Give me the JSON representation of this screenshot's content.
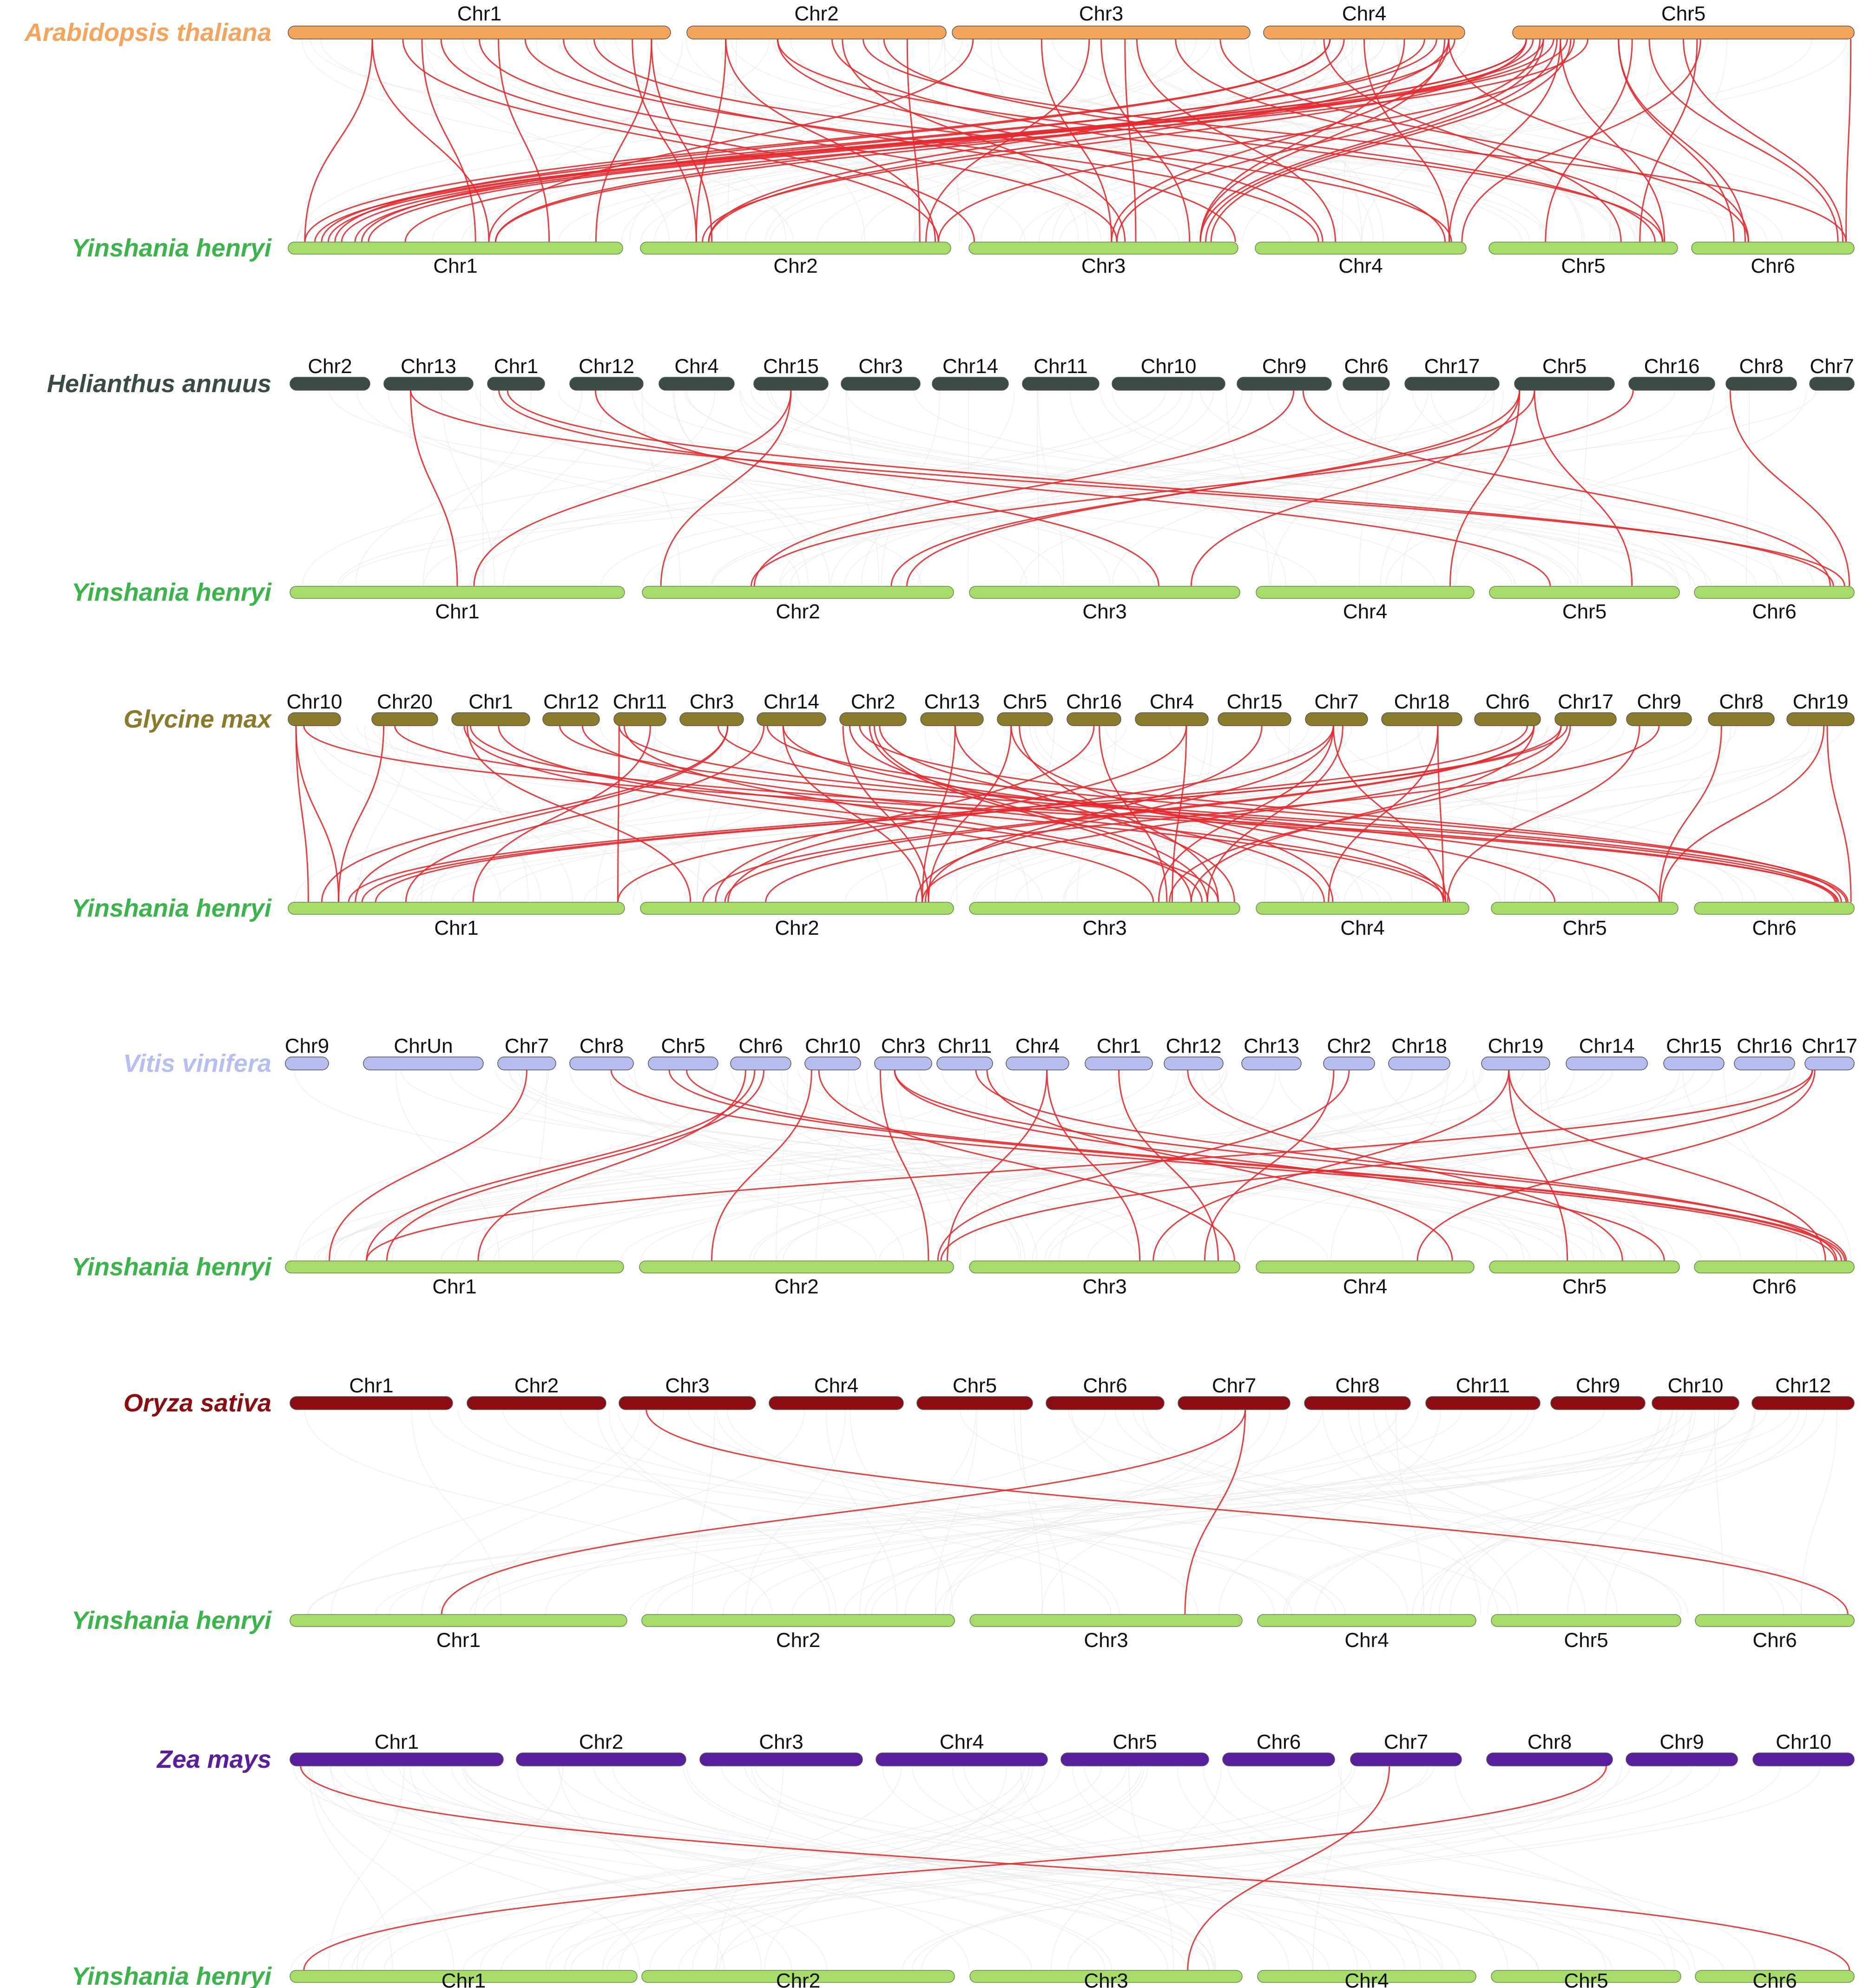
{
  "figure": {
    "link_color": "#e8282c",
    "background_link_color": "#e6e6e6",
    "blocks": [
      {
        "top": {
          "species": "Arabidopsis thaliana",
          "color": "#f5a45c",
          "chromosomes": [
            "Chr1",
            "Chr2",
            "Chr3",
            "Chr4",
            "Chr5"
          ]
        },
        "bottom": {
          "species": "Yinshania henryi",
          "color": "#a6dd6a",
          "label_color": "#3ab54a",
          "chromosomes": [
            "Chr1",
            "Chr2",
            "Chr3",
            "Chr4",
            "Chr5",
            "Chr6"
          ]
        },
        "link_count": 66
      },
      {
        "top": {
          "species": "Helianthus annuus",
          "color": "#3a4a44",
          "chromosomes": [
            "Chr2",
            "Chr13",
            "Chr1",
            "Chr12",
            "Chr4",
            "Chr15",
            "Chr3",
            "Chr14",
            "Chr11",
            "Chr10",
            "Chr9",
            "Chr6",
            "Chr17",
            "Chr5",
            "Chr16",
            "Chr8",
            "Chr7"
          ]
        },
        "bottom": {
          "species": "Yinshania henryi",
          "color": "#a6dd6a",
          "label_color": "#3ab54a",
          "chromosomes": [
            "Chr1",
            "Chr2",
            "Chr3",
            "Chr4",
            "Chr5",
            "Chr6"
          ]
        },
        "link_count": 16
      },
      {
        "top": {
          "species": "Glycine max",
          "color": "#8a7a2a",
          "chromosomes": [
            "Chr10",
            "Chr20",
            "Chr1",
            "Chr12",
            "Chr11",
            "Chr3",
            "Chr14",
            "Chr2",
            "Chr13",
            "Chr5",
            "Chr16",
            "Chr4",
            "Chr15",
            "Chr7",
            "Chr18",
            "Chr6",
            "Chr17",
            "Chr9",
            "Chr8",
            "Chr19"
          ]
        },
        "bottom": {
          "species": "Yinshania henryi",
          "color": "#a6dd6a",
          "label_color": "#3ab54a",
          "chromosomes": [
            "Chr1",
            "Chr2",
            "Chr3",
            "Chr4",
            "Chr5",
            "Chr6"
          ]
        },
        "link_count": 59
      },
      {
        "top": {
          "species": "Vitis vinifera",
          "color": "#b6bef0",
          "chromosomes": [
            "Chr9",
            "ChrUn",
            "Chr7",
            "Chr8",
            "Chr5",
            "Chr6",
            "Chr10",
            "Chr3",
            "Chr11",
            "Chr4",
            "Chr1",
            "Chr12",
            "Chr13",
            "Chr2",
            "Chr18",
            "Chr19",
            "Chr14",
            "Chr15",
            "Chr16",
            "Chr17"
          ]
        },
        "bottom": {
          "species": "Yinshania henryi",
          "color": "#a6dd6a",
          "label_color": "#3ab54a",
          "chromosomes": [
            "Chr1",
            "Chr2",
            "Chr3",
            "Chr4",
            "Chr5",
            "Chr6"
          ]
        },
        "link_count": 26
      },
      {
        "top": {
          "species": "Oryza sativa",
          "color": "#8b0d12",
          "chromosomes": [
            "Chr1",
            "Chr2",
            "Chr3",
            "Chr4",
            "Chr5",
            "Chr6",
            "Chr7",
            "Chr8",
            "Chr11",
            "Chr9",
            "Chr10",
            "Chr12"
          ]
        },
        "bottom": {
          "species": "Yinshania henryi",
          "color": "#a6dd6a",
          "label_color": "#3ab54a",
          "chromosomes": [
            "Chr1",
            "Chr2",
            "Chr3",
            "Chr4",
            "Chr5",
            "Chr6"
          ]
        },
        "link_count": 3
      },
      {
        "top": {
          "species": "Zea mays",
          "color": "#5a1d9e",
          "chromosomes": [
            "Chr1",
            "Chr2",
            "Chr3",
            "Chr4",
            "Chr5",
            "Chr6",
            "Chr7",
            "Chr8",
            "Chr9",
            "Chr10"
          ]
        },
        "bottom": {
          "species": "Yinshania henryi",
          "color": "#a6dd6a",
          "label_color": "#3ab54a",
          "chromosomes": [
            "Chr1",
            "Chr2",
            "Chr3",
            "Chr4",
            "Chr5",
            "Chr6"
          ]
        },
        "link_count": 3
      }
    ]
  }
}
